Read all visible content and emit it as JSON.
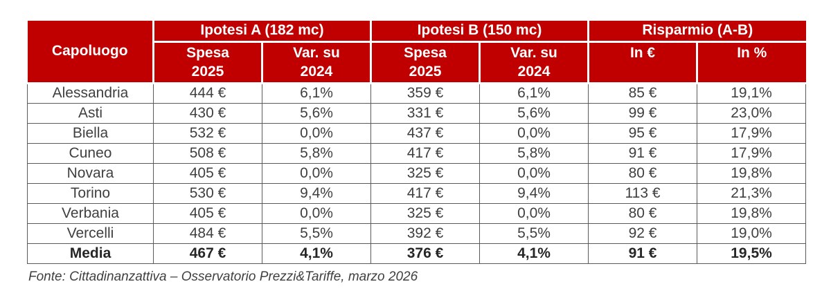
{
  "accent_color": "#c00000",
  "table": {
    "header": {
      "capoluogo": "Capoluogo",
      "groups": [
        {
          "label": "Ipotesi A (182 mc)",
          "sub": [
            "Spesa\n2025",
            "Var. su\n2024"
          ]
        },
        {
          "label": "Ipotesi B (150 mc)",
          "sub": [
            "Spesa\n2025",
            "Var. su\n2024"
          ]
        },
        {
          "label": "Risparmio (A-B)",
          "sub": [
            "In €",
            "In %"
          ]
        }
      ]
    },
    "rows": [
      {
        "cells": [
          "Alessandria",
          "444 €",
          "6,1%",
          "359 €",
          "6,1%",
          "85 €",
          "19,1%"
        ],
        "bold": false
      },
      {
        "cells": [
          "Asti",
          "430 €",
          "5,6%",
          "331 €",
          "5,6%",
          "99 €",
          "23,0%"
        ],
        "bold": false
      },
      {
        "cells": [
          "Biella",
          "532 €",
          "0,0%",
          "437 €",
          "0,0%",
          "95 €",
          "17,9%"
        ],
        "bold": false
      },
      {
        "cells": [
          "Cuneo",
          "508 €",
          "5,8%",
          "417 €",
          "5,8%",
          "91 €",
          "17,9%"
        ],
        "bold": false
      },
      {
        "cells": [
          "Novara",
          "405 €",
          "0,0%",
          "325 €",
          "0,0%",
          "80 €",
          "19,8%"
        ],
        "bold": false
      },
      {
        "cells": [
          "Torino",
          "530 €",
          "9,4%",
          "417 €",
          "9,4%",
          "113 €",
          "21,3%"
        ],
        "bold": false
      },
      {
        "cells": [
          "Verbania",
          "405 €",
          "0,0%",
          "325 €",
          "0,0%",
          "80 €",
          "19,8%"
        ],
        "bold": false
      },
      {
        "cells": [
          "Vercelli",
          "484 €",
          "5,5%",
          "392 €",
          "5,5%",
          "92 €",
          "19,0%"
        ],
        "bold": false
      },
      {
        "cells": [
          "Media",
          "467 €",
          "4,1%",
          "376 €",
          "4,1%",
          "91 €",
          "19,5%"
        ],
        "bold": true
      }
    ]
  },
  "source": "Fonte: Cittadinanzattiva – Osservatorio Prezzi&Tariffe, marzo 2026",
  "chart_data": {
    "type": "table",
    "title": "",
    "column_groups": [
      "",
      "Ipotesi A (182 mc)",
      "Ipotesi A (182 mc)",
      "Ipotesi B (150 mc)",
      "Ipotesi B (150 mc)",
      "Risparmio (A-B)",
      "Risparmio (A-B)"
    ],
    "columns": [
      "Capoluogo",
      "Spesa 2025",
      "Var. su 2024",
      "Spesa 2025",
      "Var. su 2024",
      "In €",
      "In %"
    ],
    "rows": [
      [
        "Alessandria",
        "444 €",
        "6,1%",
        "359 €",
        "6,1%",
        "85 €",
        "19,1%"
      ],
      [
        "Asti",
        "430 €",
        "5,6%",
        "331 €",
        "5,6%",
        "99 €",
        "23,0%"
      ],
      [
        "Biella",
        "532 €",
        "0,0%",
        "437 €",
        "0,0%",
        "95 €",
        "17,9%"
      ],
      [
        "Cuneo",
        "508 €",
        "5,8%",
        "417 €",
        "5,8%",
        "91 €",
        "17,9%"
      ],
      [
        "Novara",
        "405 €",
        "0,0%",
        "325 €",
        "0,0%",
        "80 €",
        "19,8%"
      ],
      [
        "Torino",
        "530 €",
        "9,4%",
        "417 €",
        "9,4%",
        "113 €",
        "21,3%"
      ],
      [
        "Verbania",
        "405 €",
        "0,0%",
        "325 €",
        "0,0%",
        "80 €",
        "19,8%"
      ],
      [
        "Vercelli",
        "484 €",
        "5,5%",
        "392 €",
        "5,5%",
        "92 €",
        "19,0%"
      ],
      [
        "Media",
        "467 €",
        "4,1%",
        "376 €",
        "4,1%",
        "91 €",
        "19,5%"
      ]
    ],
    "footnote": "Fonte: Cittadinanzattiva – Osservatorio Prezzi&Tariffe, marzo 2026"
  }
}
